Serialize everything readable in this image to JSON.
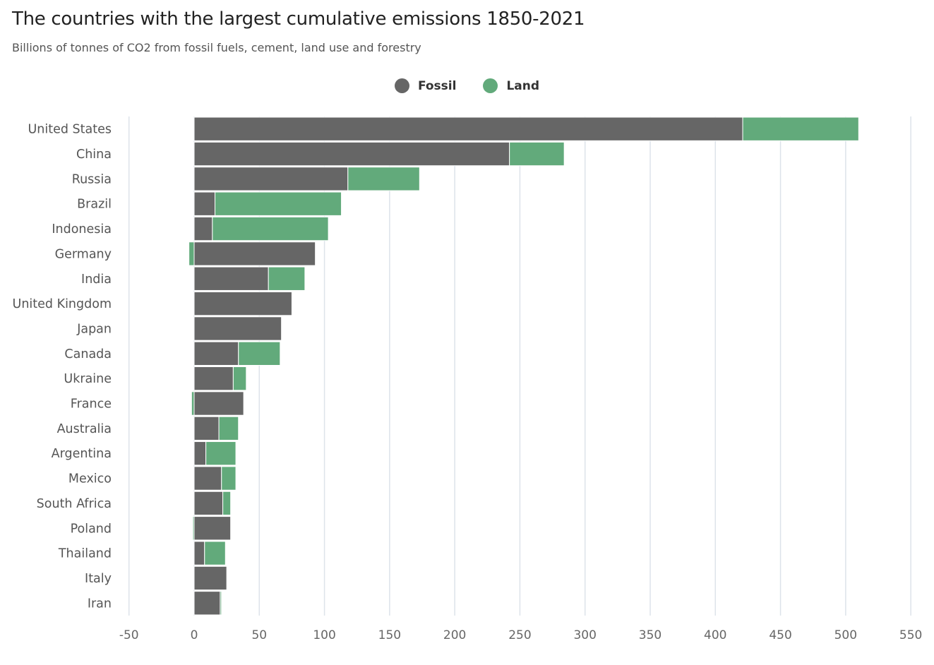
{
  "chart_data": {
    "type": "bar",
    "stacked": true,
    "orientation": "horizontal",
    "title": "The countries with the largest cumulative emissions 1850-2021",
    "subtitle": "Billions of tonnes of CO2 from fossil fuels, cement, land use and forestry",
    "xlabel": "",
    "ylabel": "",
    "xlim": [
      -50,
      550
    ],
    "xticks": [
      "-50",
      "0",
      "50",
      "100",
      "150",
      "200",
      "250",
      "300",
      "350",
      "400",
      "450",
      "500",
      "550"
    ],
    "grid": true,
    "legend_position": "top-center",
    "categories": [
      "United States",
      "China",
      "Russia",
      "Brazil",
      "Indonesia",
      "Germany",
      "India",
      "United Kingdom",
      "Japan",
      "Canada",
      "Ukraine",
      "France",
      "Australia",
      "Argentina",
      "Mexico",
      "South Africa",
      "Poland",
      "Thailand",
      "Italy",
      "Iran"
    ],
    "series": [
      {
        "name": "Fossil",
        "color": "#666666",
        "values": [
          421,
          242,
          118,
          16,
          14,
          93,
          57,
          75,
          67,
          34,
          30,
          38,
          19,
          9,
          21,
          22,
          28,
          8,
          25,
          20
        ]
      },
      {
        "name": "Land",
        "color": "#62aa7b",
        "values": [
          89,
          42,
          55,
          97,
          89,
          -4,
          28,
          0,
          0,
          32,
          10,
          -2,
          15,
          23,
          11,
          6,
          -1,
          16,
          0,
          1
        ]
      }
    ]
  }
}
